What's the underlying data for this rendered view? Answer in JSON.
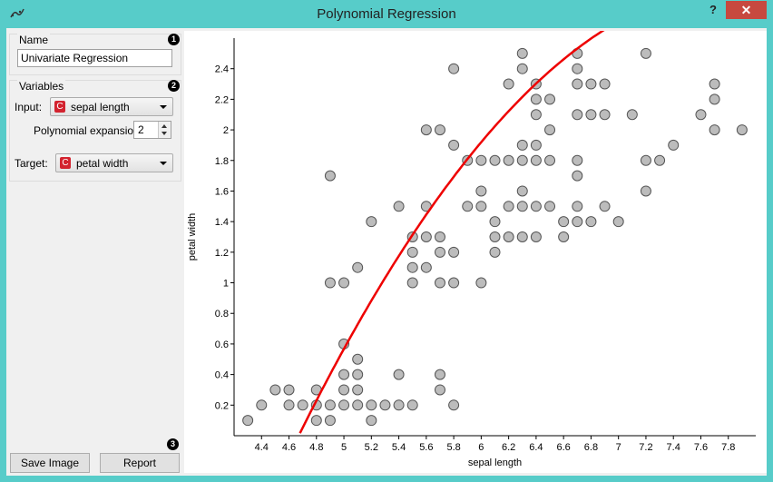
{
  "window": {
    "title": "Polynomial Regression",
    "help_label": "?",
    "close_label": "✕"
  },
  "name_box": {
    "title": "Name",
    "value": "Univariate Regression",
    "badge": "1"
  },
  "variables_box": {
    "title": "Variables",
    "badge": "2",
    "input_label": "Input:",
    "input_value": "sepal length",
    "input_type_badge": "C",
    "expansion_label": "Polynomial expansion:",
    "expansion_value": "2",
    "target_label": "Target:",
    "target_value": "petal width",
    "target_type_badge": "C"
  },
  "buttons": {
    "badge": "3",
    "save_image": "Save Image",
    "report": "Report"
  },
  "colors": {
    "point_fill": "#b5b5b5",
    "point_stroke": "#555555",
    "curve": "#ee0000",
    "titlebar": "#57ccc9"
  },
  "chart_data": {
    "type": "scatter",
    "xlabel": "sepal length",
    "ylabel": "petal width",
    "xlim": [
      4.2,
      8.0
    ],
    "ylim": [
      0.0,
      2.6
    ],
    "xticks": [
      "4.4",
      "4.6",
      "4.8",
      "5",
      "5.2",
      "5.4",
      "5.6",
      "5.8",
      "6",
      "6.2",
      "6.4",
      "6.6",
      "6.8",
      "7",
      "7.2",
      "7.4",
      "7.6",
      "7.8"
    ],
    "yticks": [
      "0.2",
      "0.4",
      "0.6",
      "0.8",
      "1",
      "1.2",
      "1.4",
      "1.6",
      "1.8",
      "2",
      "2.2",
      "2.4"
    ],
    "points": [
      [
        4.3,
        0.1
      ],
      [
        4.4,
        0.2
      ],
      [
        4.5,
        0.3
      ],
      [
        4.6,
        0.2
      ],
      [
        4.6,
        0.3
      ],
      [
        4.7,
        0.2
      ],
      [
        4.8,
        0.1
      ],
      [
        4.8,
        0.2
      ],
      [
        4.8,
        0.3
      ],
      [
        4.9,
        0.1
      ],
      [
        4.9,
        0.2
      ],
      [
        4.9,
        1.0
      ],
      [
        4.9,
        1.7
      ],
      [
        5.0,
        0.2
      ],
      [
        5.0,
        0.3
      ],
      [
        5.0,
        0.4
      ],
      [
        5.0,
        0.6
      ],
      [
        5.0,
        1.0
      ],
      [
        5.1,
        0.2
      ],
      [
        5.1,
        0.3
      ],
      [
        5.1,
        0.4
      ],
      [
        5.1,
        0.5
      ],
      [
        5.1,
        1.1
      ],
      [
        5.2,
        0.1
      ],
      [
        5.2,
        0.2
      ],
      [
        5.2,
        1.4
      ],
      [
        5.3,
        0.2
      ],
      [
        5.4,
        0.2
      ],
      [
        5.4,
        0.4
      ],
      [
        5.4,
        1.5
      ],
      [
        5.5,
        0.2
      ],
      [
        5.5,
        1.0
      ],
      [
        5.5,
        1.1
      ],
      [
        5.5,
        1.2
      ],
      [
        5.5,
        1.3
      ],
      [
        5.6,
        1.1
      ],
      [
        5.6,
        1.3
      ],
      [
        5.6,
        1.5
      ],
      [
        5.6,
        2.0
      ],
      [
        5.7,
        0.3
      ],
      [
        5.7,
        0.4
      ],
      [
        5.7,
        1.0
      ],
      [
        5.7,
        1.2
      ],
      [
        5.7,
        1.3
      ],
      [
        5.7,
        2.0
      ],
      [
        5.8,
        0.2
      ],
      [
        5.8,
        1.0
      ],
      [
        5.8,
        1.2
      ],
      [
        5.8,
        1.9
      ],
      [
        5.8,
        2.4
      ],
      [
        5.9,
        1.5
      ],
      [
        5.9,
        1.8
      ],
      [
        6.0,
        1.0
      ],
      [
        6.0,
        1.5
      ],
      [
        6.0,
        1.6
      ],
      [
        6.0,
        1.8
      ],
      [
        6.1,
        1.2
      ],
      [
        6.1,
        1.3
      ],
      [
        6.1,
        1.4
      ],
      [
        6.1,
        1.8
      ],
      [
        6.2,
        1.3
      ],
      [
        6.2,
        1.5
      ],
      [
        6.2,
        1.8
      ],
      [
        6.2,
        2.3
      ],
      [
        6.3,
        1.3
      ],
      [
        6.3,
        1.5
      ],
      [
        6.3,
        1.6
      ],
      [
        6.3,
        1.8
      ],
      [
        6.3,
        1.9
      ],
      [
        6.3,
        2.4
      ],
      [
        6.3,
        2.5
      ],
      [
        6.4,
        1.3
      ],
      [
        6.4,
        1.5
      ],
      [
        6.4,
        1.8
      ],
      [
        6.4,
        1.9
      ],
      [
        6.4,
        2.1
      ],
      [
        6.4,
        2.2
      ],
      [
        6.4,
        2.3
      ],
      [
        6.5,
        1.5
      ],
      [
        6.5,
        1.8
      ],
      [
        6.5,
        2.0
      ],
      [
        6.5,
        2.2
      ],
      [
        6.6,
        1.3
      ],
      [
        6.6,
        1.4
      ],
      [
        6.7,
        1.4
      ],
      [
        6.7,
        1.5
      ],
      [
        6.7,
        1.7
      ],
      [
        6.7,
        1.8
      ],
      [
        6.7,
        2.1
      ],
      [
        6.7,
        2.3
      ],
      [
        6.7,
        2.4
      ],
      [
        6.7,
        2.5
      ],
      [
        6.8,
        1.4
      ],
      [
        6.8,
        2.1
      ],
      [
        6.8,
        2.3
      ],
      [
        6.9,
        1.5
      ],
      [
        6.9,
        2.1
      ],
      [
        6.9,
        2.3
      ],
      [
        7.0,
        1.4
      ],
      [
        7.1,
        2.1
      ],
      [
        7.2,
        1.6
      ],
      [
        7.2,
        1.8
      ],
      [
        7.2,
        2.5
      ],
      [
        7.3,
        1.8
      ],
      [
        7.4,
        1.9
      ],
      [
        7.6,
        2.1
      ],
      [
        7.7,
        2.0
      ],
      [
        7.7,
        2.2
      ],
      [
        7.7,
        2.3
      ],
      [
        7.9,
        2.0
      ]
    ],
    "fit_coefficients": [
      -14.6,
      4.435,
      -0.2803
    ]
  }
}
